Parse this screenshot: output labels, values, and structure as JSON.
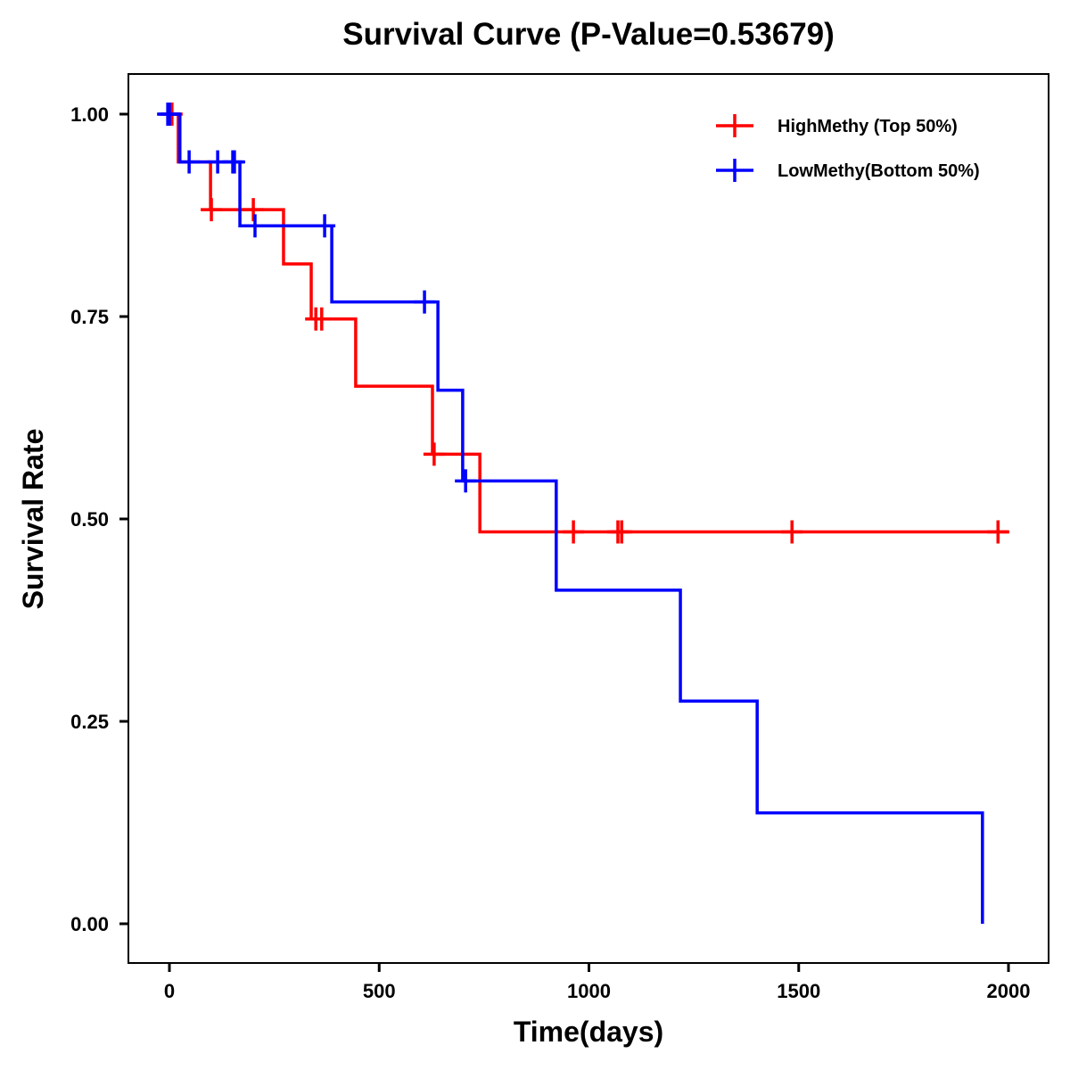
{
  "chart_data": {
    "type": "line",
    "subtype": "kaplan-meier-step",
    "title": "Survival Curve (P-Value=0.53679)",
    "xlabel": "Time(days)",
    "ylabel": "Survival Rate",
    "xlim": [
      -95,
      2095
    ],
    "ylim": [
      -0.05,
      1.05
    ],
    "xticks": [
      0,
      500,
      1000,
      1500,
      2000
    ],
    "xtick_labels": [
      "0",
      "500",
      "1000",
      "1500",
      "2000"
    ],
    "yticks": [
      0,
      0.25,
      0.5,
      0.75,
      1.0
    ],
    "ytick_labels": [
      "0.00",
      "0.25",
      "0.50",
      "0.75",
      "1.00"
    ],
    "grid": false,
    "legend_position": "top-right",
    "series": [
      {
        "name": "HighMethy (Top 50%)",
        "color": "#ff0000",
        "steps": [
          {
            "t": 0,
            "s": 1.0
          },
          {
            "t": 21,
            "s": 0.941
          },
          {
            "t": 98,
            "s": 0.882
          },
          {
            "t": 272,
            "s": 0.815
          },
          {
            "t": 338,
            "s": 0.747
          },
          {
            "t": 444,
            "s": 0.664
          },
          {
            "t": 627,
            "s": 0.58
          },
          {
            "t": 740,
            "s": 0.484
          }
        ],
        "end_time": 2002,
        "censored": [
          6,
          100,
          200,
          349,
          363,
          631,
          963,
          1069,
          1078,
          1484,
          1975
        ]
      },
      {
        "name": "LowMethy(Bottom 50%)",
        "color": "#0000ff",
        "steps": [
          {
            "t": 0,
            "s": 1.0
          },
          {
            "t": 25,
            "s": 0.941
          },
          {
            "t": 168,
            "s": 0.862
          },
          {
            "t": 387,
            "s": 0.768
          },
          {
            "t": 640,
            "s": 0.659
          },
          {
            "t": 699,
            "s": 0.547
          },
          {
            "t": 922,
            "s": 0.412
          },
          {
            "t": 1218,
            "s": 0.275
          },
          {
            "t": 1401,
            "s": 0.137
          },
          {
            "t": 1938,
            "s": 0.0
          }
        ],
        "end_time": 1938,
        "censored": [
          -4,
          0,
          47,
          115,
          151,
          155,
          204,
          370,
          608,
          706
        ]
      }
    ]
  }
}
